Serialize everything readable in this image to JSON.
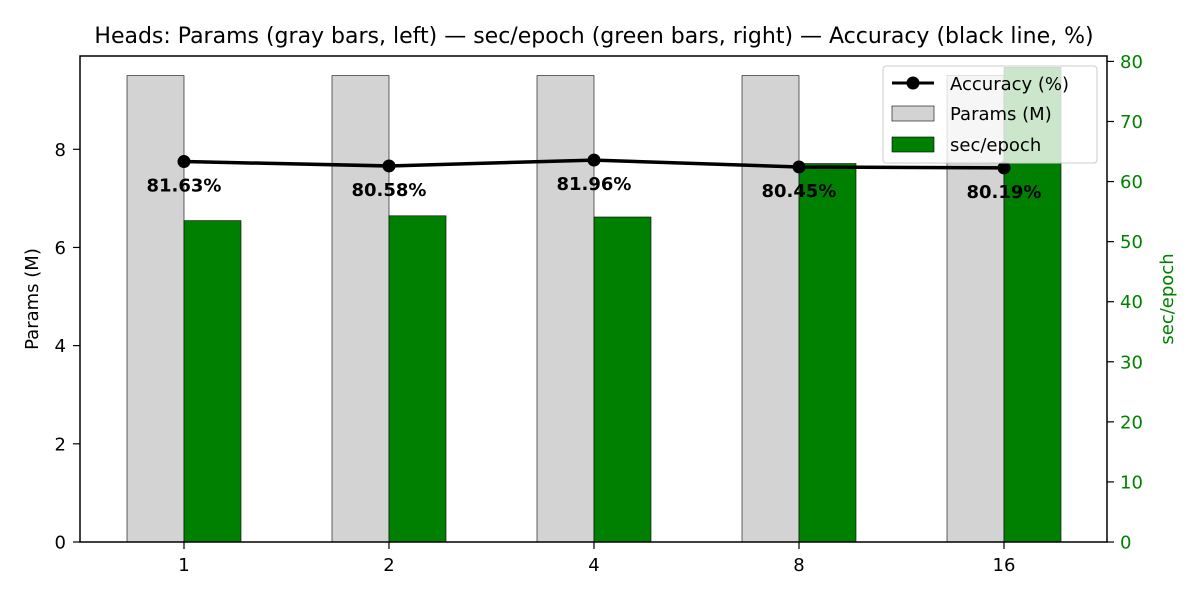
{
  "chart_data": {
    "type": "bar",
    "title": "Heads: Params (gray bars, left) — sec/epoch (green bars, right) — Accuracy (black line, %)",
    "categories": [
      "1",
      "2",
      "4",
      "8",
      "16"
    ],
    "xlabel": "",
    "ylabel_left": "Params (M)",
    "ylabel_right": "sec/epoch",
    "ylim_left": [
      0,
      9.9
    ],
    "ylim_right": [
      0,
      80.9
    ],
    "yticks_left": [
      0,
      2,
      4,
      6,
      8
    ],
    "yticks_right": [
      0,
      10,
      20,
      30,
      40,
      50,
      60,
      70,
      80
    ],
    "series": [
      {
        "name": "Params (M)",
        "kind": "bar",
        "axis": "left",
        "color": "#d3d3d3",
        "values": [
          9.5,
          9.5,
          9.5,
          9.5,
          9.5
        ]
      },
      {
        "name": "sec/epoch",
        "kind": "bar",
        "axis": "right",
        "color": "#008000",
        "values": [
          53.5,
          54.3,
          54.1,
          63.0,
          79.0
        ]
      },
      {
        "name": "Accuracy (%)",
        "kind": "line",
        "axis": "left",
        "color": "#000000",
        "values": [
          7.75,
          7.66,
          7.78,
          7.64,
          7.62
        ],
        "labels": [
          "81.63%",
          "80.58%",
          "81.96%",
          "80.45%",
          "80.19%"
        ]
      }
    ],
    "right_axis_color": "#008000",
    "grid": false,
    "legend": "top-right"
  }
}
